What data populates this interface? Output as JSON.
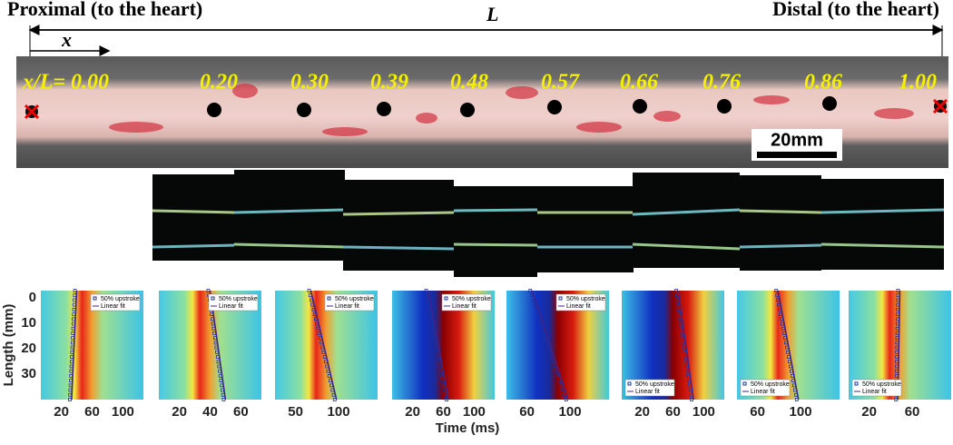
{
  "header": {
    "proximal": "Proximal (to the heart)",
    "length_symbol": "L",
    "distal": "Distal (to the heart)",
    "x_symbol": "x"
  },
  "positions": [
    "x/L= 0.00",
    "0.20",
    "0.30",
    "0.39",
    "0.48",
    "0.57",
    "0.66",
    "0.76",
    "0.86",
    "1.00"
  ],
  "scale_bar": "20mm",
  "panels": {
    "y_label": "Length (mm)",
    "x_label": "Time (ms)",
    "yticks": [
      0,
      10,
      20,
      30
    ],
    "legend": {
      "marker": "50% upstroke",
      "line": "Linear fit"
    },
    "xticks": [
      [
        20,
        60,
        100
      ],
      [
        20,
        40,
        60
      ],
      [
        50,
        100
      ],
      [
        20,
        60,
        100
      ],
      [
        60,
        100
      ],
      [
        20,
        60,
        100
      ],
      [
        60,
        100
      ],
      [
        20,
        60
      ]
    ]
  }
}
